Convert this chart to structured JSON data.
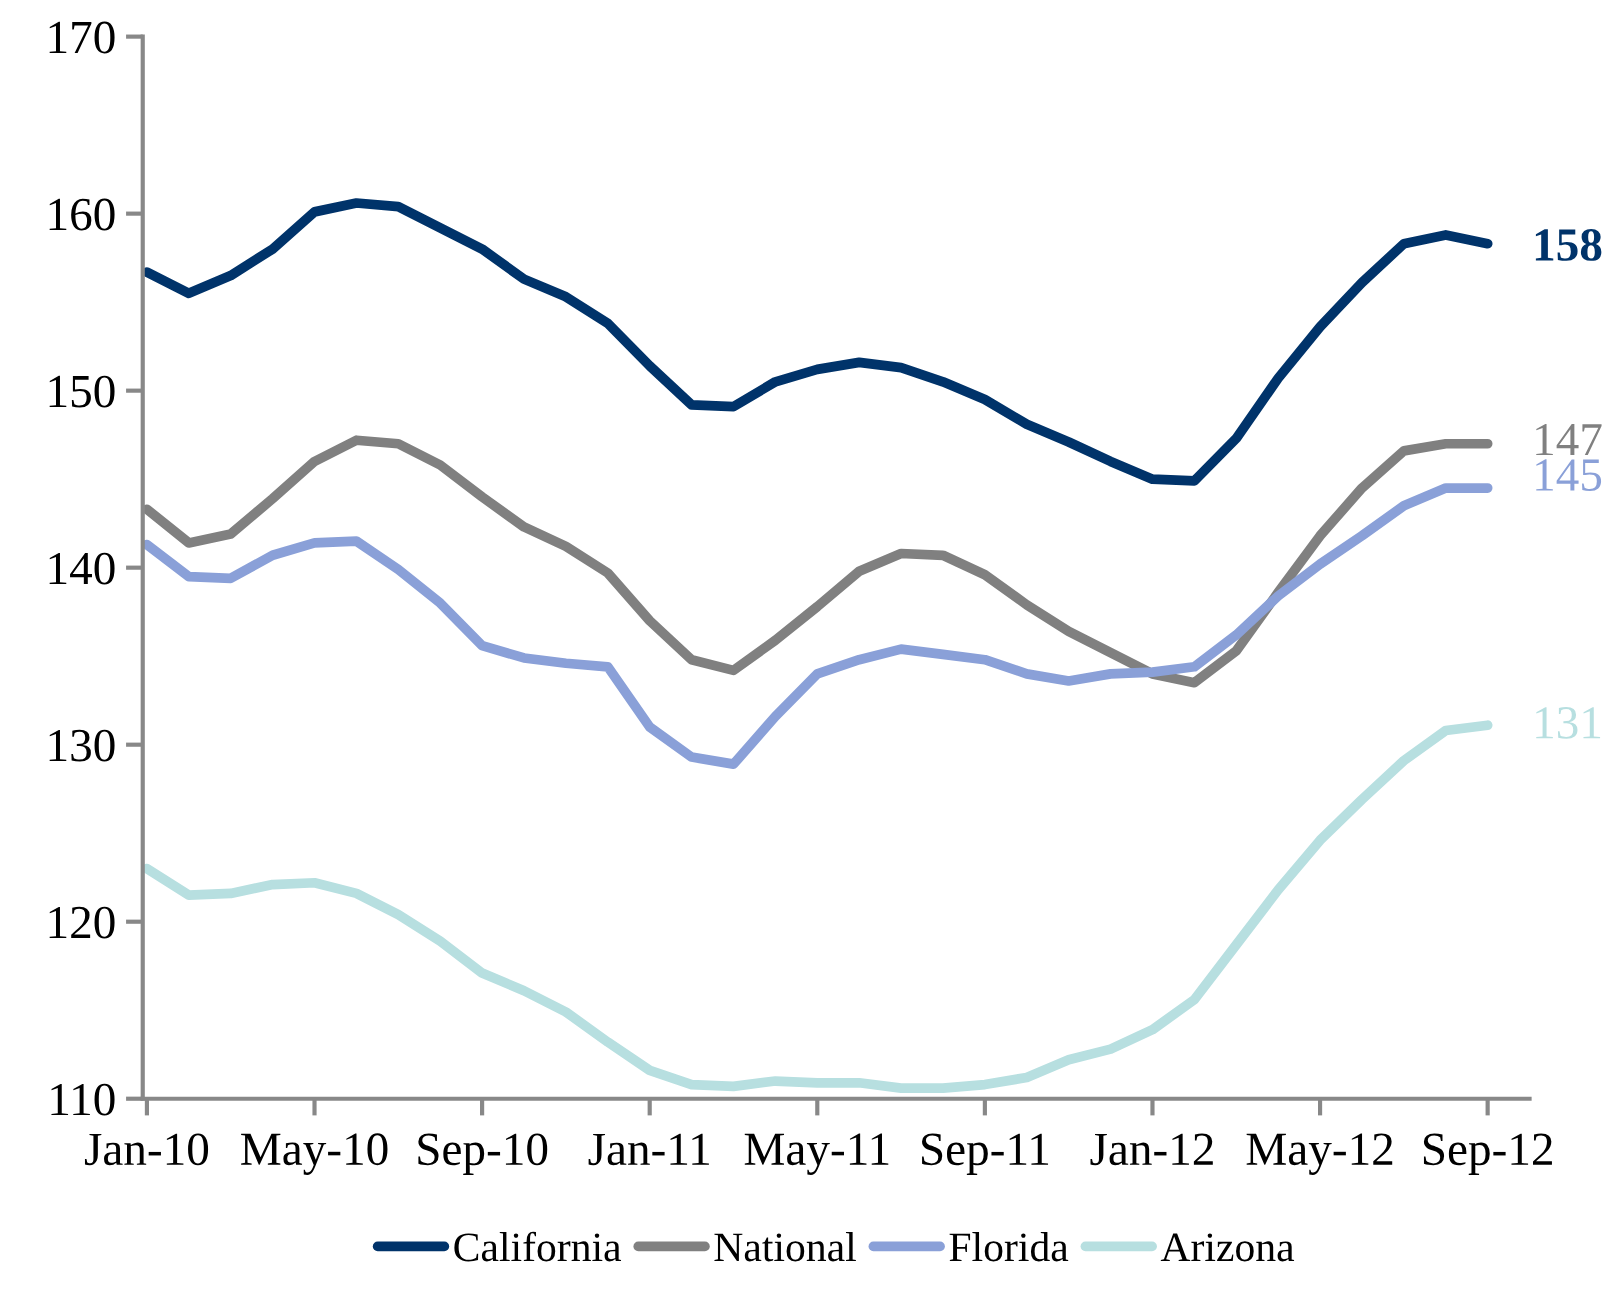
{
  "chart_data": {
    "type": "line",
    "categories": [
      "Jan-10",
      null,
      null,
      null,
      "May-10",
      null,
      null,
      null,
      "Sep-10",
      null,
      null,
      null,
      "Jan-11",
      null,
      null,
      null,
      "May-11",
      null,
      null,
      null,
      "Sep-11",
      null,
      null,
      null,
      "Jan-12",
      null,
      null,
      null,
      "May-12",
      null,
      null,
      null,
      "Sep-12"
    ],
    "series": [
      {
        "name": "California",
        "color": "#00336a",
        "values": [
          156.7,
          155.5,
          156.5,
          158,
          160.1,
          160.6,
          160.4,
          159.2,
          158,
          156.3,
          155.3,
          153.8,
          151.4,
          149.2,
          149.1,
          150.5,
          151.2,
          151.6,
          151.3,
          150.5,
          149.5,
          148.1,
          147.1,
          146,
          145,
          144.9,
          147.3,
          150.7,
          153.6,
          156.1,
          158.3,
          158.8,
          158.3
        ]
      },
      {
        "name": "National",
        "color": "#808080",
        "values": [
          143.3,
          141.4,
          141.9,
          143.9,
          146,
          147.2,
          147,
          145.8,
          144,
          142.3,
          141.2,
          139.7,
          137,
          134.8,
          134.2,
          135.9,
          137.8,
          139.8,
          140.8,
          140.7,
          139.6,
          137.9,
          136.4,
          135.2,
          134,
          133.5,
          135.3,
          138.6,
          141.8,
          144.5,
          146.6,
          147,
          147
        ]
      },
      {
        "name": "Florida",
        "color": "#8aa0d8",
        "values": [
          141.3,
          139.5,
          139.4,
          140.7,
          141.4,
          141.5,
          139.9,
          138,
          135.6,
          134.9,
          134.6,
          134.4,
          131,
          129.3,
          128.9,
          131.6,
          134,
          134.8,
          135.4,
          135.1,
          134.8,
          134,
          133.6,
          134,
          134.1,
          134.4,
          136.2,
          138.4,
          140.2,
          141.8,
          143.5,
          144.5,
          144.5
        ]
      },
      {
        "name": "Arizona",
        "color": "#b7dfe0",
        "values": [
          123,
          121.5,
          121.6,
          122.1,
          122.2,
          121.6,
          120.4,
          118.9,
          117.1,
          116.1,
          114.9,
          113.2,
          111.6,
          110.8,
          110.7,
          111,
          110.9,
          110.9,
          110.6,
          110.6,
          110.8,
          111.2,
          112.2,
          112.8,
          113.9,
          115.6,
          118.7,
          121.8,
          124.6,
          126.9,
          129.1,
          130.8,
          131.1
        ]
      }
    ],
    "ylim": [
      110,
      170
    ],
    "yticks": [
      110,
      120,
      130,
      140,
      150,
      160,
      170
    ],
    "annotations": [
      {
        "text": "158",
        "x": "Sep-12",
        "y": 158
      },
      {
        "text": "147",
        "x": "Sep-12",
        "y": 147
      },
      {
        "text": "145",
        "x": "Sep-12",
        "y": 145
      },
      {
        "text": "131",
        "x": "Sep-12",
        "y": 131
      }
    ],
    "legend": "bottom",
    "grid": false,
    "marker": "none",
    "line_style": "solid"
  }
}
